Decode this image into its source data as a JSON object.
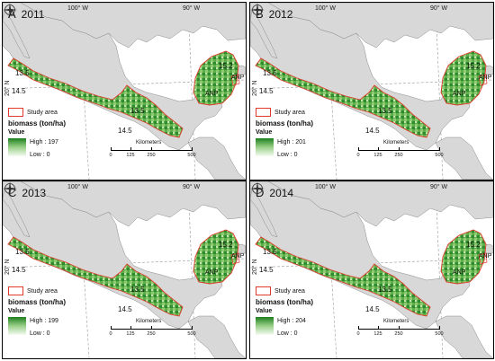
{
  "panels": [
    {
      "letter": "A",
      "year": "2011",
      "high_label": "High : 197"
    },
    {
      "letter": "B",
      "year": "2012",
      "high_label": "High : 201"
    },
    {
      "letter": "C",
      "year": "2013",
      "high_label": "High : 199"
    },
    {
      "letter": "D",
      "year": "2014",
      "high_label": "High : 204"
    }
  ],
  "graticule": {
    "lon_left": "100° W",
    "lon_right": "90° W",
    "lat": "20° N"
  },
  "isolines": {
    "a": "13.5",
    "b": "14.5",
    "c": "15.2"
  },
  "anp_label": "ANP",
  "legend": {
    "study_area": "Study area",
    "title": "biomass (ton/ha)",
    "value_heading": "Value",
    "low_label": "Low : 0"
  },
  "scale": {
    "title": "Kilometers",
    "ticks": [
      "0",
      "125",
      "250",
      "500"
    ]
  },
  "colors": {
    "land": "#d8d8d8",
    "boundary": "#e03a2a",
    "biomass_dark": "#1e7f1e",
    "biomass_light": "#9bd08a"
  }
}
